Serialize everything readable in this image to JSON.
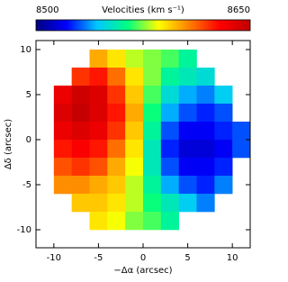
{
  "chart_data": {
    "type": "heatmap",
    "title": "Velocities (km s⁻¹)",
    "xlabel": "−Δα (arcsec)",
    "ylabel": "Δδ (arcsec)",
    "x": [
      -11,
      -9,
      -7,
      -5,
      -3,
      -1,
      1,
      3,
      5,
      7,
      9,
      11
    ],
    "y": [
      11,
      9,
      7,
      5,
      3,
      1,
      -1,
      -3,
      -5,
      -7,
      -9,
      -11
    ],
    "z": [
      [
        null,
        null,
        null,
        null,
        null,
        null,
        null,
        null,
        null,
        null,
        null,
        null
      ],
      [
        null,
        null,
        null,
        8600,
        8590,
        8580,
        8575,
        8570,
        8560,
        null,
        null,
        null
      ],
      [
        null,
        null,
        8620,
        8625,
        8610,
        8590,
        8575,
        8560,
        8555,
        8550,
        null,
        null
      ],
      [
        null,
        8635,
        8645,
        8640,
        8620,
        8595,
        8570,
        8550,
        8540,
        8535,
        8545,
        null
      ],
      [
        null,
        8640,
        8648,
        8640,
        8625,
        8600,
        8565,
        8540,
        8530,
        8525,
        8530,
        null
      ],
      [
        null,
        8635,
        8640,
        8635,
        8620,
        8595,
        8560,
        8530,
        8520,
        8520,
        8525,
        8530
      ],
      [
        null,
        8625,
        8630,
        8625,
        8610,
        8590,
        8555,
        8525,
        8515,
        8515,
        8520,
        8530
      ],
      [
        null,
        8615,
        8620,
        8615,
        8600,
        8585,
        8555,
        8530,
        8520,
        8520,
        8525,
        null
      ],
      [
        null,
        8605,
        8605,
        8600,
        8595,
        8580,
        8560,
        8540,
        8530,
        8525,
        8535,
        null
      ],
      [
        null,
        null,
        8595,
        8595,
        8590,
        8580,
        8565,
        8555,
        8545,
        8535,
        null,
        null
      ],
      [
        null,
        null,
        null,
        8590,
        8585,
        8575,
        8570,
        8560,
        null,
        null,
        null,
        null
      ],
      [
        null,
        null,
        null,
        null,
        null,
        null,
        null,
        null,
        null,
        null,
        null,
        null
      ]
    ],
    "zlim": [
      8500,
      8650
    ],
    "colors": [
      "#000080",
      "#0000ff",
      "#00c8ff",
      "#00ff80",
      "#ffff00",
      "#ff8000",
      "#ff0000",
      "#c00000"
    ],
    "xlim": [
      -12,
      12
    ],
    "xticks": [
      -10,
      -5,
      0,
      5,
      10
    ],
    "ylim": [
      -12,
      11
    ],
    "yticks": [
      -10,
      -5,
      0,
      5,
      10
    ]
  }
}
